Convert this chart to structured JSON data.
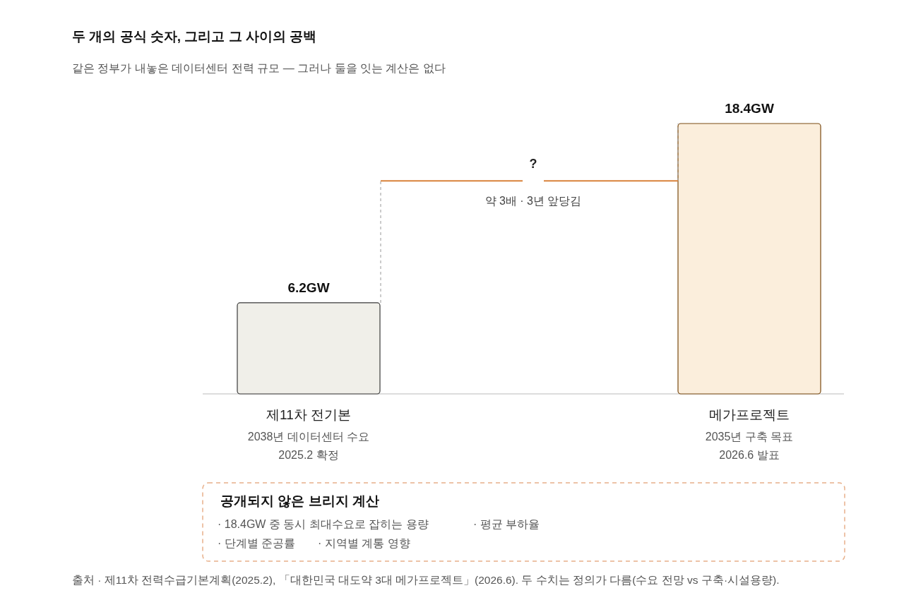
{
  "chart_data": {
    "type": "bar",
    "title": "두 개의 공식 숫자, 그리고 그 사이의 공백",
    "subtitle": "같은 정부가 내놓은 데이터센터 전력 규모 — 그러나 둘을 잇는 계산은 없다",
    "categories": [
      "제11차 전기본\n2038년 데이터센터 수요\n2025.2 확정",
      "메가프로젝트\n2035년 구축 목표\n2026.6 발표"
    ],
    "values": [
      6.2,
      18.4
    ],
    "value_labels": [
      "6.2GW",
      "18.4GW"
    ],
    "colors": [
      "#f0efe9",
      "#fbeedc"
    ],
    "annotations": [
      "?",
      "약 3배 · 3년 앞당김",
      "공개되지 않은 브리지 계산",
      "· 18.4GW 중 동시 최대수요로 잡히는 용량",
      "· 평균 부하율",
      "· 단계별 준공률",
      "· 지역별 계통 영향",
      "출처 · 제11차 전력수급기본계획(2025.2), 「대한민국 대도약 3대 메가프로젝트」(2026.6). 두 수치는 정의가 다름(수요 전망 vs 구축·시설용량)."
    ]
  }
}
